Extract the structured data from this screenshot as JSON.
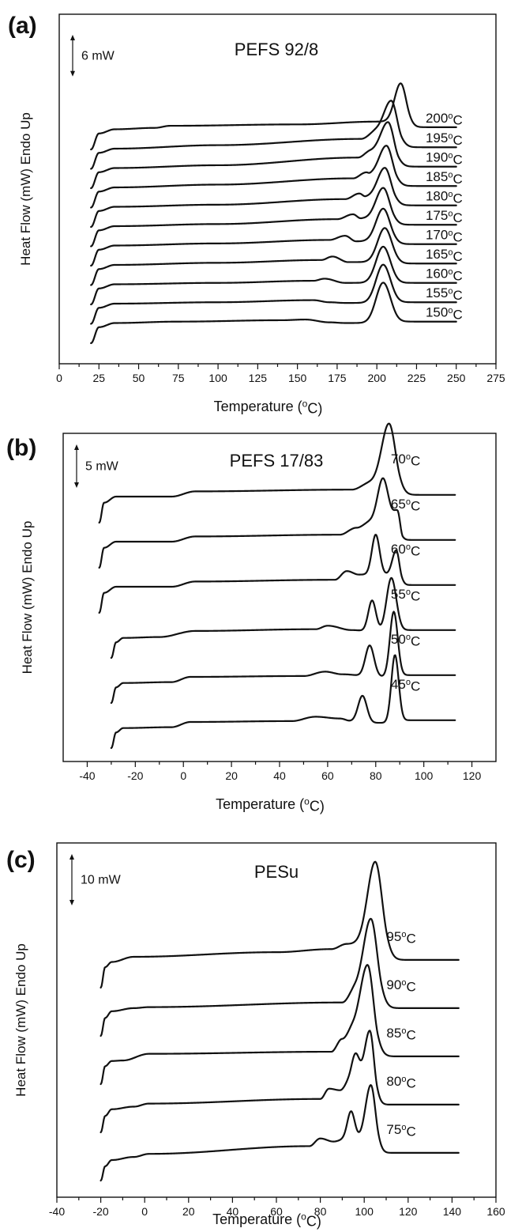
{
  "chart_data": [
    {
      "type": "line",
      "panel_label": "(a)",
      "title": "PEFS 92/8",
      "xlabel": "Temperature (°C)",
      "ylabel": "Heat Flow (mW) Endo Up",
      "xlim": [
        0,
        275
      ],
      "xticks": [
        0,
        25,
        50,
        75,
        100,
        125,
        150,
        175,
        200,
        225,
        250,
        275
      ],
      "scale_bar": {
        "label": "6 mW",
        "value": 6
      },
      "grid": false,
      "x_start": 20,
      "x_end": 250,
      "series": [
        {
          "name": "150°C",
          "offset": 0,
          "base": [
            [
              20,
              0.0
            ],
            [
              25,
              2.3
            ],
            [
              35,
              2.9
            ],
            [
              75,
              3.1
            ],
            [
              140,
              3.3
            ],
            [
              155,
              3.4
            ],
            [
              170,
              3.0
            ],
            [
              180,
              2.9
            ]
          ],
          "peaks": [
            {
              "t": 204,
              "h": 5.8,
              "w": 4.5
            }
          ],
          "end": 3.1
        },
        {
          "name": "155°C",
          "offset": 1,
          "base": [
            [
              20,
              0.0
            ],
            [
              25,
              2.3
            ],
            [
              35,
              2.9
            ],
            [
              100,
              3.1
            ],
            [
              160,
              3.4
            ],
            [
              170,
              3.1
            ],
            [
              180,
              3.0
            ]
          ],
          "peaks": [
            {
              "t": 204,
              "h": 5.5,
              "w": 4.5
            }
          ],
          "end": 3.1
        },
        {
          "name": "160°C",
          "offset": 2,
          "base": [
            [
              20,
              0.0
            ],
            [
              25,
              2.3
            ],
            [
              35,
              2.9
            ],
            [
              100,
              3.1
            ],
            [
              160,
              3.4
            ],
            [
              167,
              3.7
            ],
            [
              180,
              3.1
            ]
          ],
          "peaks": [
            {
              "t": 204,
              "h": 5.2,
              "w": 4.5
            }
          ],
          "end": 3.1
        },
        {
          "name": "165°C",
          "offset": 3,
          "base": [
            [
              20,
              0.0
            ],
            [
              25,
              2.3
            ],
            [
              35,
              2.9
            ],
            [
              100,
              3.2
            ],
            [
              165,
              3.6
            ],
            [
              172,
              4.1
            ],
            [
              182,
              3.3
            ]
          ],
          "peaks": [
            {
              "t": 205,
              "h": 4.9,
              "w": 4.5
            }
          ],
          "end": 3.1
        },
        {
          "name": "170°C",
          "offset": 4,
          "base": [
            [
              20,
              0.0
            ],
            [
              25,
              2.3
            ],
            [
              35,
              2.9
            ],
            [
              100,
              3.2
            ],
            [
              170,
              3.7
            ],
            [
              180,
              4.3
            ],
            [
              187,
              3.5
            ]
          ],
          "peaks": [
            {
              "t": 204,
              "h": 4.7,
              "w": 4.5
            }
          ],
          "end": 3.1
        },
        {
          "name": "175°C",
          "offset": 5,
          "base": [
            [
              20,
              0.0
            ],
            [
              25,
              2.3
            ],
            [
              35,
              2.9
            ],
            [
              100,
              3.2
            ],
            [
              175,
              3.9
            ],
            [
              185,
              4.6
            ],
            [
              190,
              4.0
            ]
          ],
          "peaks": [
            {
              "t": 204,
              "h": 4.4,
              "w": 4.5
            }
          ],
          "end": 3.1
        },
        {
          "name": "180°C",
          "offset": 6,
          "base": [
            [
              20,
              0.0
            ],
            [
              25,
              2.3
            ],
            [
              35,
              2.9
            ],
            [
              100,
              3.2
            ],
            [
              180,
              4.0
            ],
            [
              189,
              4.8
            ],
            [
              193,
              4.3
            ]
          ],
          "peaks": [
            {
              "t": 205,
              "h": 4.2,
              "w": 4.5
            }
          ],
          "end": 3.1
        },
        {
          "name": "185°C",
          "offset": 7,
          "base": [
            [
              20,
              0.0
            ],
            [
              25,
              2.3
            ],
            [
              35,
              2.9
            ],
            [
              100,
              3.3
            ],
            [
              185,
              4.2
            ],
            [
              193,
              5.0
            ],
            [
              196,
              4.7
            ]
          ],
          "peaks": [
            {
              "t": 206,
              "h": 4.2,
              "w": 4.5
            }
          ],
          "end": 3.1
        },
        {
          "name": "190°C",
          "offset": 8,
          "base": [
            [
              20,
              0.0
            ],
            [
              25,
              2.3
            ],
            [
              35,
              2.9
            ],
            [
              100,
              3.3
            ],
            [
              188,
              4.4
            ],
            [
              196,
              5.3
            ]
          ],
          "peaks": [
            {
              "t": 207,
              "h": 4.2,
              "w": 4.5
            }
          ],
          "end": 3.1
        },
        {
          "name": "195°C",
          "offset": 9,
          "base": [
            [
              20,
              0.0
            ],
            [
              25,
              2.3
            ],
            [
              35,
              2.9
            ],
            [
              100,
              3.4
            ],
            [
              190,
              4.3
            ],
            [
              200,
              5.4
            ]
          ],
          "peaks": [
            {
              "t": 209,
              "h": 4.4,
              "w": 4.5
            }
          ],
          "end": 3.1
        },
        {
          "name": "200°C",
          "offset": 10,
          "base": [
            [
              20,
              0.0
            ],
            [
              25,
              2.3
            ],
            [
              35,
              2.9
            ],
            [
              60,
              3.1
            ],
            [
              70,
              3.4
            ],
            [
              150,
              3.6
            ],
            [
              200,
              4.0
            ]
          ],
          "peaks": [
            {
              "t": 215,
              "h": 5.5,
              "w": 3.8
            }
          ],
          "end": 3.2
        }
      ]
    },
    {
      "type": "line",
      "panel_label": "(b)",
      "title": "PEFS 17/83",
      "xlabel": "Temperature (°C)",
      "ylabel": "Heat Flow (mW) Endo Up",
      "xlim": [
        -50,
        130
      ],
      "xticks": [
        -40,
        -20,
        0,
        20,
        40,
        60,
        80,
        100,
        120
      ],
      "scale_bar": {
        "label": "5 mW",
        "value": 5
      },
      "grid": false,
      "x_end": 113,
      "series": [
        {
          "name": "45°C",
          "offset": 0,
          "x_start": -30,
          "base": [
            [
              -30,
              0.0
            ],
            [
              -28,
              1.8
            ],
            [
              -25,
              2.3
            ],
            [
              -5,
              2.4
            ],
            [
              3,
              3.0
            ],
            [
              45,
              3.1
            ],
            [
              55,
              3.6
            ],
            [
              65,
              3.4
            ],
            [
              70,
              3.1
            ],
            [
              80,
              2.9
            ]
          ],
          "peaks": [
            {
              "t": 74.5,
              "h": 3.0,
              "w": 1.8
            },
            {
              "t": 88,
              "h": 7.8,
              "w": 1.5
            }
          ],
          "end": 3.2
        },
        {
          "name": "50°C",
          "offset": 1,
          "x_start": -30,
          "base": [
            [
              -30,
              0.0
            ],
            [
              -28,
              1.8
            ],
            [
              -25,
              2.3
            ],
            [
              -5,
              2.4
            ],
            [
              3,
              3.0
            ],
            [
              50,
              3.1
            ],
            [
              59,
              3.6
            ],
            [
              66,
              3.3
            ],
            [
              80,
              3.0
            ]
          ],
          "peaks": [
            {
              "t": 77.5,
              "h": 3.6,
              "w": 1.8
            },
            {
              "t": 87.5,
              "h": 7.5,
              "w": 1.6
            }
          ],
          "end": 3.2
        },
        {
          "name": "55°C",
          "offset": 2,
          "x_start": -30,
          "base": [
            [
              -30,
              0.0
            ],
            [
              -28,
              1.8
            ],
            [
              -25,
              2.3
            ],
            [
              -10,
              2.4
            ],
            [
              5,
              3.1
            ],
            [
              55,
              3.3
            ],
            [
              60,
              3.7
            ],
            [
              70,
              3.2
            ],
            [
              80,
              3.0
            ]
          ],
          "peaks": [
            {
              "t": 78.5,
              "h": 3.6,
              "w": 1.6
            },
            {
              "t": 86.5,
              "h": 6.2,
              "w": 2.0
            }
          ],
          "end": 3.2
        },
        {
          "name": "60°C",
          "offset": 3,
          "x_start": -35,
          "base": [
            [
              -35,
              0.0
            ],
            [
              -33,
              2.3
            ],
            [
              -28,
              3.0
            ],
            [
              -5,
              3.0
            ],
            [
              5,
              3.6
            ],
            [
              63,
              3.8
            ],
            [
              68,
              4.8
            ],
            [
              73,
              4.4
            ]
          ],
          "peaks": [
            {
              "t": 80,
              "h": 4.6,
              "w": 1.6
            },
            {
              "t": 88.5,
              "h": 2.8,
              "w": 1.6
            }
          ],
          "end": 3.2
        },
        {
          "name": "65°C",
          "offset": 4,
          "x_start": -35,
          "base": [
            [
              -35,
              0.0
            ],
            [
              -33,
              2.3
            ],
            [
              -28,
              3.0
            ],
            [
              -5,
              3.0
            ],
            [
              5,
              3.6
            ],
            [
              65,
              3.8
            ],
            [
              72,
              4.6
            ],
            [
              78,
              5.3
            ]
          ],
          "peaks": [
            {
              "t": 83,
              "h": 5.0,
              "w": 2.2
            },
            {
              "t": 89,
              "h": 1.2,
              "w": 1.5
            }
          ],
          "end": 3.2
        },
        {
          "name": "70°C",
          "offset": 5,
          "x_start": -35,
          "base": [
            [
              -35,
              0.0
            ],
            [
              -33,
              2.3
            ],
            [
              -28,
              3.0
            ],
            [
              -5,
              3.0
            ],
            [
              5,
              3.6
            ],
            [
              70,
              3.8
            ],
            [
              78,
              4.6
            ]
          ],
          "peaks": [
            {
              "t": 85.5,
              "h": 6.8,
              "w": 3.0
            }
          ],
          "end": 3.2
        }
      ]
    },
    {
      "type": "line",
      "panel_label": "(c)",
      "title": "PESu",
      "xlabel": "Temperature (°C)",
      "ylabel": "Heat Flow (mW) Endo Up",
      "xlim": [
        -40,
        160
      ],
      "xticks": [
        -40,
        -20,
        0,
        20,
        40,
        60,
        80,
        100,
        120,
        140,
        160
      ],
      "scale_bar": {
        "label": "10 mW",
        "value": 10
      },
      "grid": false,
      "x_start": -20,
      "x_end": 143,
      "series": [
        {
          "name": "75°C",
          "offset": 0,
          "base": [
            [
              -20,
              0.0
            ],
            [
              -18,
              2.8
            ],
            [
              -15,
              4.0
            ],
            [
              -5,
              4.6
            ],
            [
              2,
              5.2
            ],
            [
              75,
              6.7
            ],
            [
              80,
              8.2
            ],
            [
              86,
              7.6
            ],
            [
              91,
              8.0
            ]
          ],
          "peaks": [
            {
              "t": 94,
              "h": 5.5,
              "w": 1.7
            },
            {
              "t": 103,
              "h": 10.6,
              "w": 2.4
            }
          ],
          "end": 5.4
        },
        {
          "name": "80°C",
          "offset": 1,
          "base": [
            [
              -20,
              0.0
            ],
            [
              -18,
              3.2
            ],
            [
              -15,
              4.5
            ],
            [
              -5,
              5.0
            ],
            [
              2,
              5.6
            ],
            [
              80,
              6.5
            ],
            [
              84,
              8.5
            ],
            [
              89,
              8.2
            ],
            [
              93,
              9.6
            ]
          ],
          "peaks": [
            {
              "t": 96,
              "h": 5.6,
              "w": 1.8
            },
            {
              "t": 102.5,
              "h": 10.2,
              "w": 2.3
            }
          ],
          "end": 5.4
        },
        {
          "name": "85°C",
          "offset": 2,
          "base": [
            [
              -20,
              0.0
            ],
            [
              -18,
              3.5
            ],
            [
              -15,
              4.5
            ],
            [
              -10,
              4.6
            ],
            [
              2,
              5.9
            ],
            [
              85,
              6.3
            ],
            [
              90,
              8.8
            ],
            [
              95,
              10.8
            ]
          ],
          "peaks": [
            {
              "t": 101.5,
              "h": 12.4,
              "w": 3.2
            }
          ],
          "end": 5.4
        },
        {
          "name": "90°C",
          "offset": 3,
          "base": [
            [
              -20,
              0.0
            ],
            [
              -18,
              3.5
            ],
            [
              -15,
              4.8
            ],
            [
              -5,
              5.4
            ],
            [
              2,
              5.6
            ],
            [
              90,
              6.5
            ],
            [
              96,
              9.0
            ]
          ],
          "peaks": [
            {
              "t": 103,
              "h": 13.8,
              "w": 3.3
            }
          ],
          "end": 5.4
        },
        {
          "name": "95°C",
          "offset": 4,
          "base": [
            [
              -20,
              0.0
            ],
            [
              -18,
              4.0
            ],
            [
              -15,
              5.0
            ],
            [
              -5,
              6.0
            ],
            [
              60,
              6.9
            ],
            [
              85,
              7.5
            ],
            [
              92,
              8.5
            ]
          ],
          "peaks": [
            {
              "t": 105,
              "h": 16.0,
              "w": 3.5
            }
          ],
          "end": 5.4
        }
      ]
    }
  ]
}
